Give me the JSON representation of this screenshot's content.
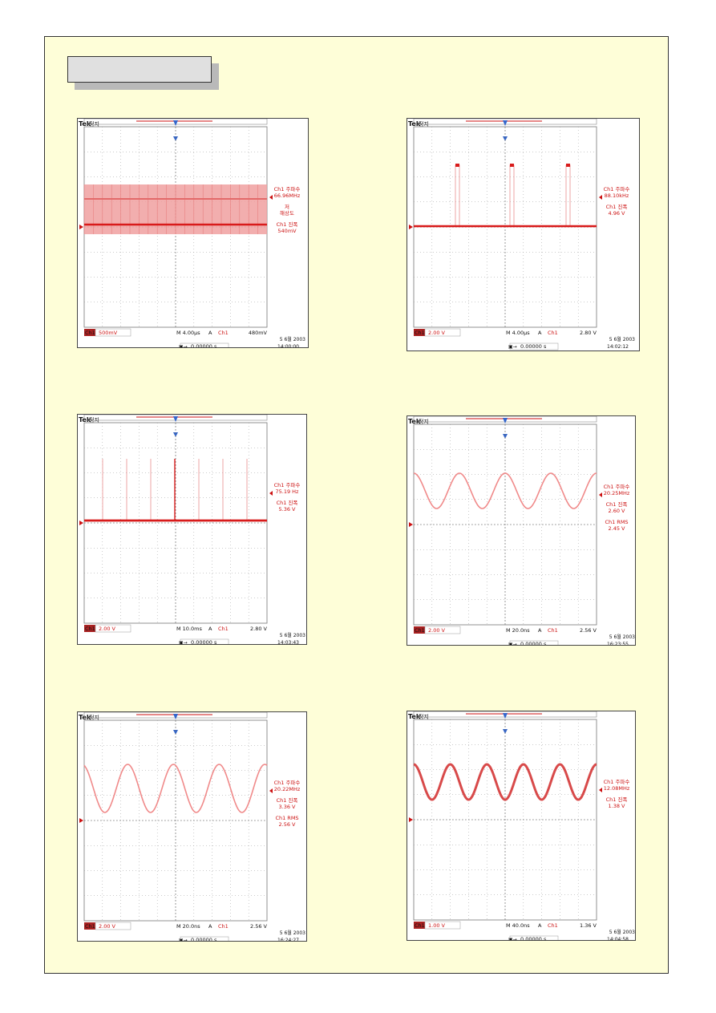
{
  "scopes": [
    {
      "brand": "Tek",
      "state": "정지",
      "readouts": [
        "Ch1 주파수",
        "66.96MHz",
        "저",
        "해상도",
        "Ch1 진폭",
        "540mV"
      ],
      "ch_label": "Ch1",
      "ch_scale": "500mV",
      "timebase": "M 4.00µs",
      "trig_mode": "A",
      "trig_ch": "Ch1",
      "trig_level": "480mV",
      "date": "5 6월 2003",
      "time": "14:00:00",
      "position": "0.00000 s",
      "wave": "band"
    },
    {
      "brand": "Tek",
      "state": "정지",
      "readouts": [
        "Ch1 주파수",
        "88.10kHz",
        "Ch1 진폭",
        "4.96 V"
      ],
      "ch_label": "Ch1",
      "ch_scale": "2.00 V",
      "timebase": "M 4.00µs",
      "trig_mode": "A",
      "trig_ch": "Ch1",
      "trig_level": "2.80 V",
      "date": "5 6월 2003",
      "time": "14:02:12",
      "position": "0.00000 s",
      "wave": "pulse"
    },
    {
      "brand": "Tek",
      "state": "정지",
      "readouts": [
        "Ch1 주파수",
        "75.19 Hz",
        "Ch1 진폭",
        "5.36 V"
      ],
      "ch_label": "Ch1",
      "ch_scale": "2.00 V",
      "timebase": "M 10.0ms",
      "trig_mode": "A",
      "trig_ch": "Ch1",
      "trig_level": "2.80 V",
      "date": "5 6월 2003",
      "time": "14:03:43",
      "position": "0.00000 s",
      "wave": "spikes"
    },
    {
      "brand": "Tek",
      "state": "정지",
      "readouts": [
        "Ch1 주파수",
        "20.25MHz",
        "Ch1 진폭",
        "2.60 V",
        "Ch1 RMS",
        "2.45 V"
      ],
      "ch_label": "Ch1",
      "ch_scale": "2.00 V",
      "timebase": "M 20.0ns",
      "trig_mode": "A",
      "trig_ch": "Ch1",
      "trig_level": "2.56 V",
      "date": "5 6월 2003",
      "time": "16:23:55",
      "position": "0.00000 s",
      "wave": "sine"
    },
    {
      "brand": "Tek",
      "state": "정지",
      "readouts": [
        "Ch1 주파수",
        "20.22MHz",
        "Ch1 진폭",
        "3.36 V",
        "Ch1 RMS",
        "2.56 V"
      ],
      "ch_label": "Ch1",
      "ch_scale": "2.00 V",
      "timebase": "M 20.0ns",
      "trig_mode": "A",
      "trig_ch": "Ch1",
      "trig_level": "2.56 V",
      "date": "5 6월 2003",
      "time": "16:24:27",
      "position": "0.00000 s",
      "wave": "sine2"
    },
    {
      "brand": "Tek",
      "state": "정지",
      "readouts": [
        "Ch1 주파수",
        "12.08MHz",
        "Ch1 진폭",
        "1.38 V"
      ],
      "ch_label": "Ch1",
      "ch_scale": "1.00 V",
      "timebase": "M 40.0ns",
      "trig_mode": "A",
      "trig_ch": "Ch1",
      "trig_level": "1.36 V",
      "date": "5 6월 2003",
      "time": "14:04:58",
      "position": "0.00000 s",
      "wave": "sine3"
    }
  ],
  "colors": {
    "trace": "#d81b1b",
    "trace_light": "#f08a8a",
    "band": "#f0a0a0",
    "grid": "#9a9a9a"
  }
}
